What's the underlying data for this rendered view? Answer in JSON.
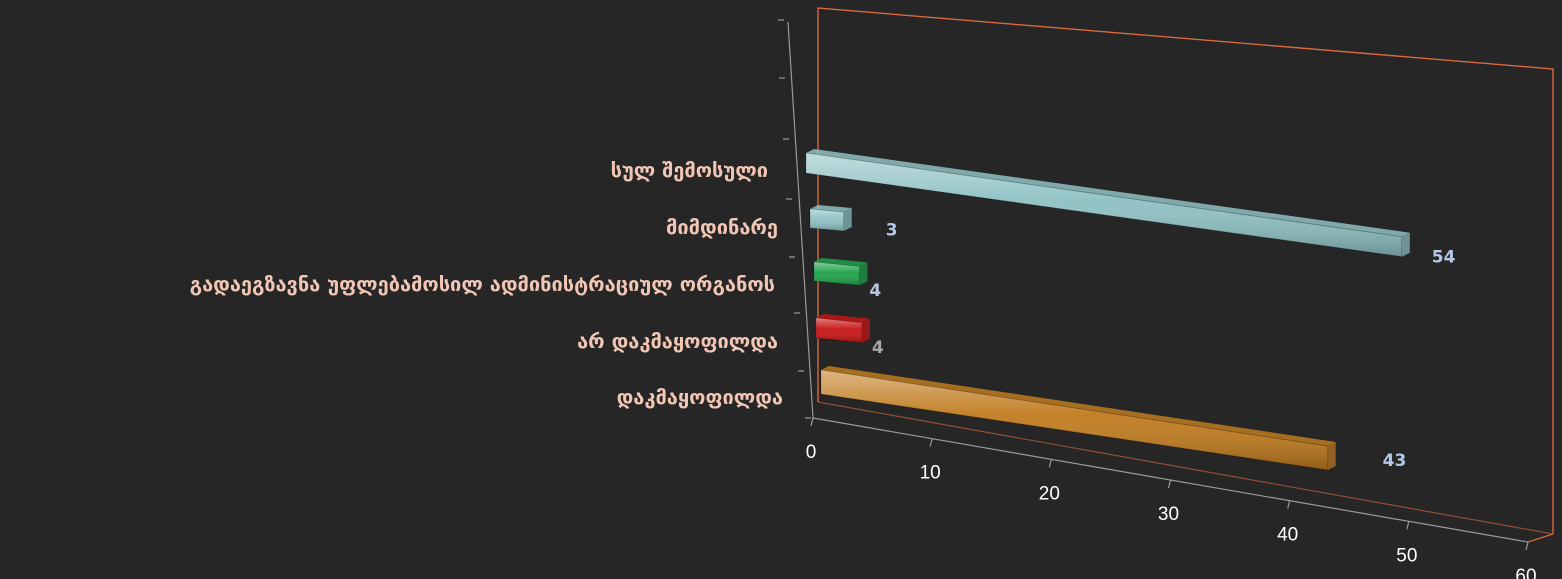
{
  "chart_data": {
    "type": "bar",
    "orientation": "horizontal",
    "three_d": true,
    "categories": [
      "სულ შემოსული",
      "მიმდინარე",
      "გადაეგზავნა უფლებამოსილ ადმინისტრაციულ ორგანოს",
      "არ დაკმაყოფილდა",
      "დაკმაყოფილდა"
    ],
    "values": [
      54,
      3,
      4,
      4,
      43
    ],
    "data_labels": [
      "54",
      "3",
      "4",
      "4",
      "43"
    ],
    "bar_colors": [
      "#8fc1c3",
      "#8fc1c3",
      "#1fa24a",
      "#c81414",
      "#c07b1e"
    ],
    "label_colors": [
      "#b4c8e6",
      "#b4c8e6",
      "#b4c8e6",
      "#a6a6a6",
      "#b4c8e6"
    ],
    "x_ticks": [
      "0",
      "10",
      "20",
      "30",
      "40",
      "50",
      "60"
    ],
    "xlim": [
      0,
      60
    ],
    "title": "",
    "xlabel": "",
    "ylabel": "",
    "grid": false,
    "legend": "none",
    "colors": {
      "background": "#262626",
      "category_text": "#f2c6b4",
      "tick_text": "#ffffff",
      "wall_frame": "#d9673f",
      "axis": "#9a9a9a"
    }
  }
}
